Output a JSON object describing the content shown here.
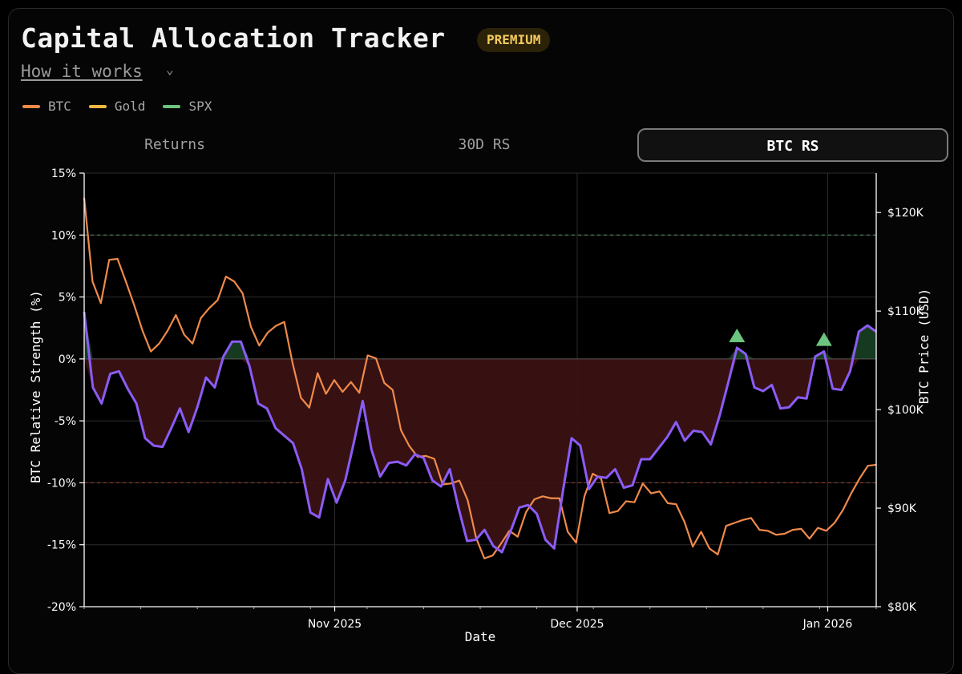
{
  "header": {
    "title": "Capital Allocation Tracker",
    "badge": "PREMIUM",
    "how_link": "How it works",
    "chevron": "⌄"
  },
  "legend": [
    {
      "label": "BTC",
      "color": "#f08a4b"
    },
    {
      "label": "Gold",
      "color": "#f0b840"
    },
    {
      "label": "SPX",
      "color": "#6cc57e"
    }
  ],
  "tabs": [
    {
      "label": "Returns",
      "active": false
    },
    {
      "label": "30D RS",
      "active": false
    },
    {
      "label": "BTC RS",
      "active": true
    }
  ],
  "chart_data": {
    "type": "line",
    "title": "",
    "xlabel": "Date",
    "ylabel": "BTC Relative Strength (%)",
    "y2label": "BTC Price (USD)",
    "x_range": [
      "2025-10-01",
      "2026-01-07"
    ],
    "ylim": [
      -20,
      15
    ],
    "y2lim": [
      80000,
      124000
    ],
    "yticks": [
      -20,
      -15,
      -10,
      -5,
      0,
      5,
      10,
      15
    ],
    "ytick_labels": [
      "-20%",
      "-15%",
      "-10%",
      "-5%",
      "0%",
      "5%",
      "10%",
      "15%"
    ],
    "y2ticks": [
      80000,
      90000,
      100000,
      110000,
      120000
    ],
    "y2tick_labels": [
      "$80K",
      "$90K",
      "$100K",
      "$110K",
      "$120K"
    ],
    "xticks": [
      "2025-11-01",
      "2025-12-01",
      "2026-01-01"
    ],
    "xtick_labels": [
      "Nov 2025",
      "Dec 2025",
      "Jan 2026"
    ],
    "reference_lines": [
      {
        "y": 10,
        "color": "#6cc57e",
        "style": "dashed"
      },
      {
        "y": -10,
        "color": "#e0503a",
        "style": "dashed"
      }
    ],
    "series": [
      {
        "name": "BTC Relative Strength",
        "axis": "left",
        "color": "#8b5cf6",
        "values": [
          3.8,
          -2.3,
          -3.6,
          -1.2,
          -1.0,
          -2.4,
          -3.6,
          -6.4,
          -7.0,
          -7.1,
          -5.6,
          -4.0,
          -5.9,
          -3.9,
          -1.5,
          -2.3,
          0.2,
          1.4,
          1.4,
          -0.6,
          -3.6,
          -4.0,
          -5.6,
          -6.2,
          -6.8,
          -8.9,
          -12.4,
          -12.8,
          -9.7,
          -11.6,
          -9.8,
          -6.7,
          -3.4,
          -7.3,
          -9.5,
          -8.4,
          -8.3,
          -8.6,
          -7.7,
          -8.0,
          -9.8,
          -10.3,
          -8.9,
          -12.0,
          -14.7,
          -14.6,
          -13.8,
          -15.1,
          -15.6,
          -13.9,
          -12.0,
          -11.8,
          -12.5,
          -14.6,
          -15.3,
          -10.7,
          -6.4,
          -7.0,
          -10.5,
          -9.5,
          -9.6,
          -8.9,
          -10.4,
          -10.2,
          -8.1,
          -8.1,
          -7.2,
          -6.3,
          -5.1,
          -6.6,
          -5.8,
          -5.9,
          -6.9,
          -4.6,
          -1.9,
          0.9,
          0.4,
          -2.3,
          -2.6,
          -2.1,
          -4.0,
          -3.9,
          -3.1,
          -3.2,
          0.2,
          0.6,
          -2.4,
          -2.5,
          -1.0,
          2.2,
          2.7,
          2.2
        ],
        "triangles_at_index": [
          75,
          85
        ]
      },
      {
        "name": "BTC Price",
        "axis": "right",
        "color": "#f08a4b",
        "values": [
          121500,
          113000,
          110800,
          115200,
          115300,
          113000,
          110600,
          108000,
          105900,
          106700,
          108000,
          109600,
          107600,
          106700,
          109300,
          110300,
          111100,
          113500,
          113000,
          111800,
          108400,
          106500,
          107800,
          108500,
          108900,
          104700,
          101200,
          100200,
          103700,
          101600,
          103000,
          101800,
          102800,
          101700,
          105500,
          105200,
          102700,
          102000,
          97900,
          96300,
          95200,
          95300,
          95000,
          92400,
          92500,
          92800,
          90800,
          87000,
          84900,
          85200,
          86400,
          87700,
          87100,
          89600,
          90900,
          91200,
          91000,
          91000,
          87600,
          86500,
          91200,
          93500,
          93000,
          89500,
          89700,
          90700,
          90600,
          92500,
          91500,
          91700,
          90500,
          90400,
          88600,
          86100,
          87600,
          85900,
          85300,
          88200,
          88500,
          88800,
          89000,
          87800,
          87700,
          87300,
          87400,
          87800,
          87900,
          86900,
          88000,
          87700,
          88500,
          89800,
          91500,
          93000,
          94300,
          94400
        ]
      }
    ]
  }
}
